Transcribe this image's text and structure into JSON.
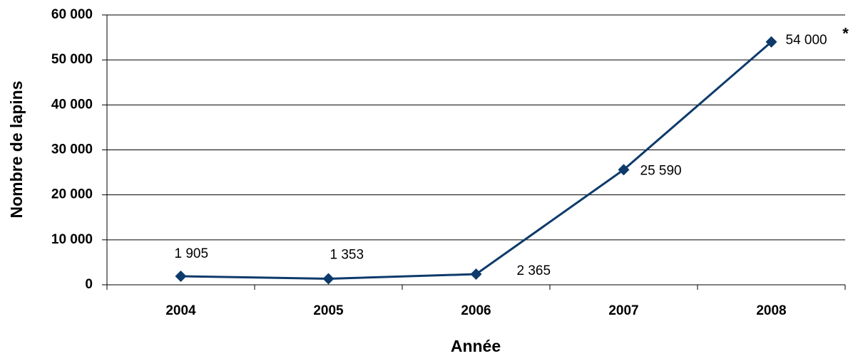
{
  "chart_data": {
    "type": "line",
    "x_label": "Année",
    "y_label": "Nombre de lapins",
    "categories": [
      "2004",
      "2005",
      "2006",
      "2007",
      "2008"
    ],
    "series": [
      {
        "name": "Nombre de lapins",
        "color": "#0d3a6b",
        "values": [
          1905,
          1353,
          2365,
          25590,
          54000
        ],
        "value_labels": [
          "1 905",
          "1 353",
          "2 365",
          "25 590",
          "54 000"
        ]
      }
    ],
    "annotation": "*",
    "ylim": [
      0,
      60000
    ],
    "yticks": [
      0,
      {
        "value": 10000,
        "label": "10 000"
      },
      {
        "value": 20000,
        "label": "20 000"
      },
      {
        "value": 30000,
        "label": "30 000"
      },
      {
        "value": 40000,
        "label": "40 000"
      },
      {
        "value": 50000,
        "label": "50 000"
      },
      {
        "value": 60000,
        "label": "60 000"
      }
    ],
    "grid": true
  }
}
